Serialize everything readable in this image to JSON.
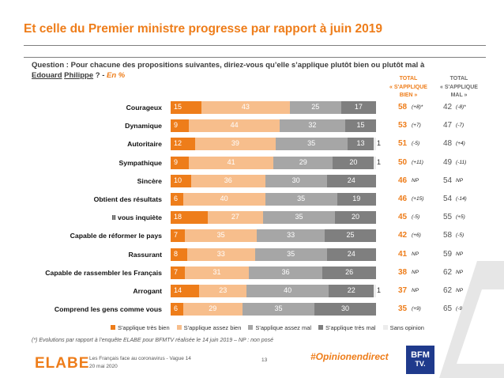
{
  "title": "Et celle du Premier ministre progresse par rapport à juin 2019",
  "question": {
    "prefix": "Question : Pour chacune des propositions suivantes, diriez-vous qu’elle s’applique plutôt bien ou plutôt mal à ",
    "name_line1": "Edouard",
    "name_line2": "Philippe",
    "suffix": " ? - ",
    "unit": "En %"
  },
  "headers": {
    "good_l1": "TOTAL",
    "good_l2": "« S'APPLIQUE",
    "good_l3": "BIEN »",
    "bad_l1": "TOTAL",
    "bad_l2": "« S'APPLIQUE",
    "bad_l3": "MAL »"
  },
  "chart_data": {
    "type": "bar",
    "orientation": "horizontal-stacked",
    "categories": [
      "Courageux",
      "Dynamique",
      "Autoritaire",
      "Sympathique",
      "Sincère",
      "Obtient des résultats",
      "Il vous inquiète",
      "Capable de réformer le pays",
      "Rassurant",
      "Capable de rassembler les Français",
      "Arrogant",
      "Comprend les gens comme vous"
    ],
    "series": [
      {
        "name": "S'applique très bien",
        "color": "#ee7d1a",
        "values": [
          15,
          9,
          12,
          9,
          10,
          6,
          18,
          7,
          8,
          7,
          14,
          6
        ]
      },
      {
        "name": "S'applique assez bien",
        "color": "#f7be8c",
        "values": [
          43,
          44,
          39,
          41,
          36,
          40,
          27,
          35,
          33,
          31,
          23,
          29
        ]
      },
      {
        "name": "S'applique assez mal",
        "color": "#a6a6a6",
        "values": [
          25,
          32,
          35,
          29,
          30,
          35,
          35,
          33,
          35,
          36,
          40,
          35
        ]
      },
      {
        "name": "S'applique très mal",
        "color": "#7f7f7f",
        "values": [
          17,
          15,
          13,
          20,
          24,
          19,
          20,
          25,
          24,
          26,
          22,
          30
        ]
      },
      {
        "name": "Sans opinion",
        "color": "#ececec",
        "values": [
          0,
          0,
          1,
          1,
          0,
          0,
          0,
          0,
          0,
          0,
          1,
          0
        ]
      }
    ],
    "total_bien": [
      58,
      53,
      51,
      50,
      46,
      46,
      45,
      42,
      41,
      38,
      37,
      35
    ],
    "total_bien_delta": [
      "(+8)*",
      "(+7)",
      "(-5)",
      "(+11)",
      "NP",
      "(+15)",
      "(-5)",
      "(+6)",
      "NP",
      "NP",
      "NP",
      "(+9)"
    ],
    "total_mal": [
      42,
      47,
      48,
      49,
      54,
      54,
      55,
      58,
      59,
      62,
      62,
      65
    ],
    "total_mal_delta": [
      "(-8)*",
      "(-7)",
      "(+4)",
      "(-11)",
      "NP",
      "(-14)",
      "(+5)",
      "(-5)",
      "NP",
      "NP",
      "NP",
      "(-9)"
    ],
    "xlim": [
      0,
      100
    ],
    "legend_position": "bottom"
  },
  "footnote": "(*) Evolutions par rapport à l’enquête ELABE pour BFMTV réalisée le 14 juin 2019 – NP : non posé",
  "footer": {
    "logo": "ELABE",
    "source_line1": "Les Français face au coronavirus - Vague 14",
    "source_line2": "20 mai 2020",
    "page": "13",
    "hashtag": "#Opinionendirect",
    "bfm_l1": "BFM",
    "bfm_l2": "TV."
  }
}
